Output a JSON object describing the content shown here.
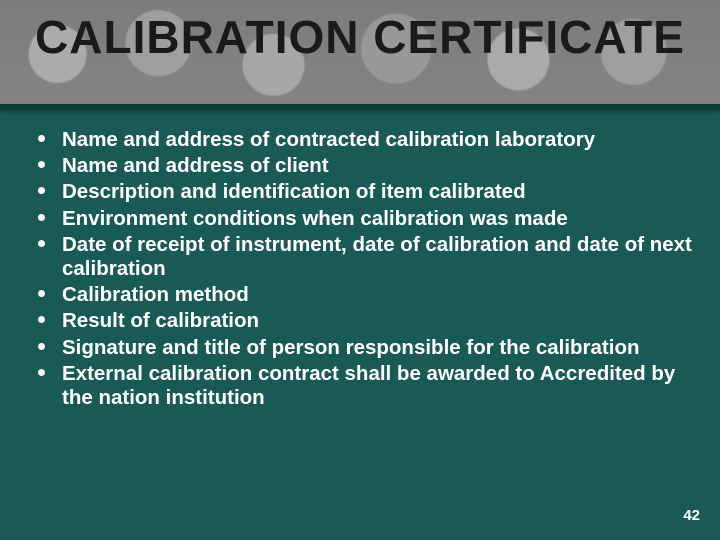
{
  "slide": {
    "title": "CALIBRATION CERTIFICATE",
    "bullets": [
      "Name and address of contracted calibration laboratory",
      "Name and address of client",
      "Description and identification of item calibrated",
      "Environment conditions when calibration was made",
      "Date of receipt of instrument, date of calibration and date of next calibration",
      "Calibration method",
      "Result of calibration",
      "Signature and title of person responsible for the calibration",
      "External calibration contract shall be awarded to  Accredited by the nation institution"
    ],
    "page_number": "42"
  },
  "style": {
    "background_color": "#1a5a56",
    "header_gray": "#888888",
    "text_color": "#ffffff",
    "title_color": "#1a1a1a",
    "title_fontsize": 46,
    "bullet_fontsize": 20.5,
    "pagenum_fontsize": 15
  }
}
